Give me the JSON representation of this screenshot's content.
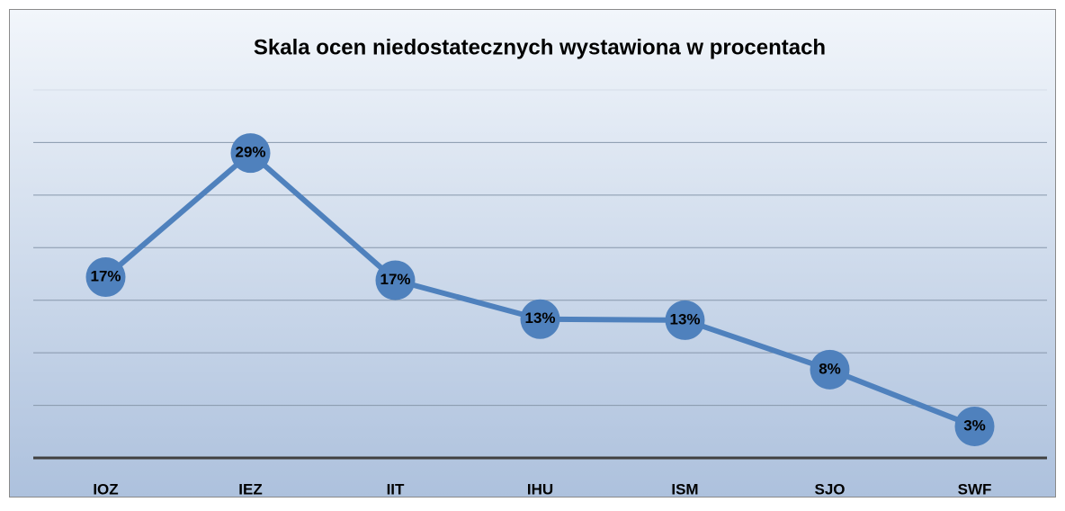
{
  "chart_data": {
    "type": "line",
    "title": "Skala ocen niedostatecznych wystawiona w procentach",
    "categories": [
      "IOZ",
      "IEZ",
      "IIT",
      "IHU",
      "ISM",
      "SJO",
      "SWF"
    ],
    "series": [
      {
        "color": "#4f81bd",
        "values": [
          17.2,
          29,
          16.9,
          13.2,
          13.1,
          8.4,
          3
        ],
        "value_labels": [
          "17%",
          "29%",
          "17%",
          "13%",
          "13%",
          "8%",
          "3%"
        ]
      }
    ],
    "ylim": [
      0,
      35
    ],
    "yticks": [
      5,
      10,
      15,
      20,
      25,
      30,
      35
    ],
    "grid": true
  }
}
